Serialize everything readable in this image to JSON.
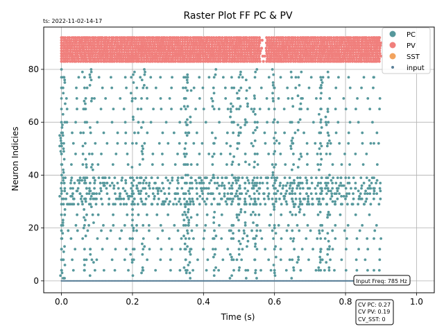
{
  "timestamp": "ts: 2022-11-02-14-17",
  "input_freq_label": "Input Freq: 785 Hz",
  "cv_lines": [
    "CV PC: 0.27",
    "CV PV: 0.19",
    "CV_SST: 0"
  ],
  "colors": {
    "PC": "#56989c",
    "PV": "#f07f7c",
    "SST": "#f2a35e",
    "input": "#5a7f98",
    "grid": "#b0b0b0",
    "axis": "#000000"
  },
  "chart_data": {
    "type": "scatter",
    "title": "Raster Plot FF PC & PV",
    "xlabel": "Time (s)",
    "ylabel": "Neuron Indicies",
    "xlim": [
      -0.05,
      1.05
    ],
    "ylim": [
      -4.5,
      96
    ],
    "xticks": [
      0.0,
      0.2,
      0.4,
      0.6,
      0.8,
      1.0
    ],
    "xticklabels": [
      "0.0",
      "0.2",
      "0.4",
      "0.6",
      "0.8",
      "1.0"
    ],
    "yticks": [
      0,
      20,
      40,
      60,
      80
    ],
    "yticklabels": [
      "0",
      "20",
      "40",
      "60",
      "80"
    ],
    "grid": true,
    "legend": {
      "position": "top-right",
      "entries": [
        "PC",
        "PV",
        "SST",
        "input"
      ]
    },
    "series": [
      {
        "name": "PC",
        "neuron_index_range": [
          1,
          80
        ],
        "time_range": [
          0.0,
          0.9
        ],
        "dense_rows": [
          4,
          8,
          12,
          16,
          19,
          21,
          25,
          29,
          31,
          33,
          35,
          37,
          39,
          44,
          48,
          52,
          56,
          60,
          65,
          69,
          73,
          77
        ],
        "burst_times": [
          0.0,
          0.005,
          0.065,
          0.085,
          0.2,
          0.23,
          0.35,
          0.36,
          0.43,
          0.48,
          0.5,
          0.52,
          0.545,
          0.6,
          0.65,
          0.67,
          0.73,
          0.75
        ],
        "points": [
          [
            0.0,
            4
          ],
          [
            0.0,
            8
          ],
          [
            0.0,
            12
          ],
          [
            0.0,
            16
          ],
          [
            0.0,
            19
          ],
          [
            0.0,
            21
          ],
          [
            0.0,
            25
          ],
          [
            0.0,
            29
          ],
          [
            0.0,
            33
          ],
          [
            0.0,
            37
          ],
          [
            0.0,
            44
          ],
          [
            0.0,
            48
          ],
          [
            0.0,
            52
          ],
          [
            0.0,
            56
          ],
          [
            0.0,
            60
          ],
          [
            0.0,
            65
          ],
          [
            0.0,
            69
          ],
          [
            0.0,
            73
          ],
          [
            0.0,
            77
          ],
          [
            0.0,
            80
          ],
          [
            0.065,
            4
          ],
          [
            0.065,
            12
          ],
          [
            0.065,
            21
          ],
          [
            0.065,
            31
          ],
          [
            0.065,
            37
          ],
          [
            0.065,
            65
          ],
          [
            0.065,
            73
          ],
          [
            0.065,
            77
          ],
          [
            0.2,
            8
          ],
          [
            0.2,
            16
          ],
          [
            0.2,
            25
          ],
          [
            0.2,
            33
          ],
          [
            0.2,
            39
          ],
          [
            0.2,
            52
          ],
          [
            0.2,
            69
          ],
          [
            0.23,
            4
          ],
          [
            0.23,
            12
          ],
          [
            0.23,
            29
          ],
          [
            0.23,
            35
          ],
          [
            0.23,
            60
          ],
          [
            0.23,
            73
          ],
          [
            0.35,
            4
          ],
          [
            0.35,
            8
          ],
          [
            0.35,
            12
          ],
          [
            0.35,
            16
          ],
          [
            0.35,
            21
          ],
          [
            0.35,
            25
          ],
          [
            0.35,
            29
          ],
          [
            0.35,
            33
          ],
          [
            0.35,
            37
          ],
          [
            0.35,
            44
          ],
          [
            0.35,
            52
          ],
          [
            0.35,
            56
          ],
          [
            0.35,
            60
          ],
          [
            0.35,
            65
          ],
          [
            0.35,
            69
          ],
          [
            0.35,
            73
          ],
          [
            0.35,
            77
          ],
          [
            0.43,
            4
          ],
          [
            0.43,
            16
          ],
          [
            0.43,
            31
          ],
          [
            0.43,
            39
          ],
          [
            0.43,
            48
          ],
          [
            0.43,
            65
          ],
          [
            0.43,
            77
          ],
          [
            0.48,
            8
          ],
          [
            0.48,
            21
          ],
          [
            0.48,
            33
          ],
          [
            0.48,
            44
          ],
          [
            0.48,
            60
          ],
          [
            0.48,
            73
          ],
          [
            0.5,
            4
          ],
          [
            0.5,
            12
          ],
          [
            0.5,
            19
          ],
          [
            0.5,
            25
          ],
          [
            0.5,
            29
          ],
          [
            0.5,
            35
          ],
          [
            0.5,
            39
          ],
          [
            0.5,
            52
          ],
          [
            0.5,
            56
          ],
          [
            0.5,
            65
          ],
          [
            0.5,
            69
          ],
          [
            0.5,
            77
          ],
          [
            0.545,
            8
          ],
          [
            0.545,
            16
          ],
          [
            0.545,
            31
          ],
          [
            0.545,
            37
          ],
          [
            0.545,
            48
          ],
          [
            0.545,
            60
          ],
          [
            0.6,
            4
          ],
          [
            0.6,
            12
          ],
          [
            0.6,
            21
          ],
          [
            0.6,
            33
          ],
          [
            0.6,
            39
          ],
          [
            0.6,
            65
          ],
          [
            0.6,
            73
          ],
          [
            0.65,
            8
          ],
          [
            0.65,
            19
          ],
          [
            0.65,
            25
          ],
          [
            0.65,
            31
          ],
          [
            0.65,
            37
          ],
          [
            0.65,
            52
          ],
          [
            0.65,
            69
          ],
          [
            0.73,
            4
          ],
          [
            0.73,
            8
          ],
          [
            0.73,
            12
          ],
          [
            0.73,
            16
          ],
          [
            0.73,
            21
          ],
          [
            0.73,
            29
          ],
          [
            0.73,
            33
          ],
          [
            0.73,
            37
          ],
          [
            0.73,
            44
          ],
          [
            0.73,
            48
          ],
          [
            0.73,
            56
          ],
          [
            0.73,
            60
          ],
          [
            0.73,
            65
          ],
          [
            0.73,
            69
          ],
          [
            0.73,
            73
          ],
          [
            0.73,
            77
          ],
          [
            0.75,
            12
          ],
          [
            0.75,
            25
          ],
          [
            0.75,
            35
          ],
          [
            0.75,
            39
          ],
          [
            0.75,
            52
          ],
          [
            0.75,
            65
          ],
          [
            0.88,
            4
          ],
          [
            0.88,
            16
          ],
          [
            0.88,
            33
          ],
          [
            0.88,
            52
          ],
          [
            0.88,
            77
          ]
        ]
      },
      {
        "name": "PV",
        "neuron_index_range": [
          83,
          92
        ],
        "time_range": [
          0.0,
          0.9
        ],
        "description_values": {
          "rows": [
            83,
            84,
            85,
            86,
            87,
            88,
            89,
            90,
            91,
            92
          ]
        }
      },
      {
        "name": "SST",
        "points": []
      },
      {
        "name": "input",
        "neuron_index_range": [
          0,
          0
        ],
        "time_range": [
          0.0,
          0.88
        ]
      }
    ]
  }
}
